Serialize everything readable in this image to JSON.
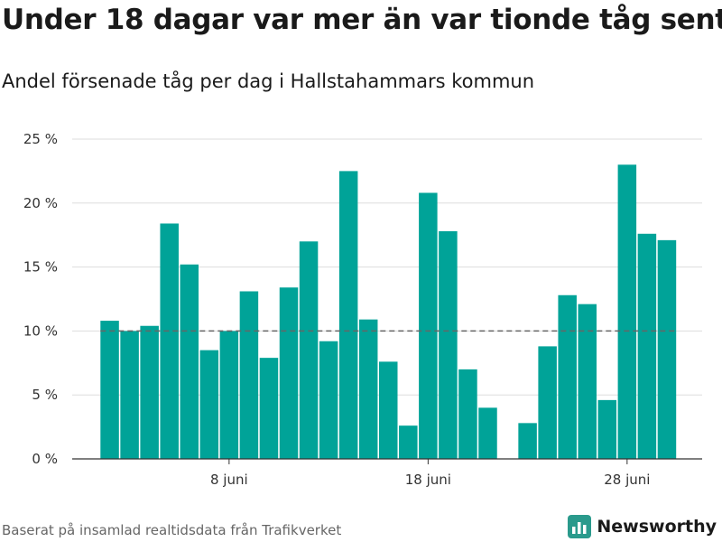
{
  "title": "Under 18 dagar var mer än var tionde tåg sent",
  "subtitle": "Andel försenade tåg per dag i Hallstahammars kommun",
  "source": "Baserat på insamlad realtidsdata från Trafikverket",
  "brand": {
    "name": "Newsworthy",
    "icon": "bar-chart-logo-icon"
  },
  "colors": {
    "bar": "#00a398",
    "reference_line": "#666666",
    "grid": "#dddddd",
    "brand": "#2a9a8c"
  },
  "chart_data": {
    "type": "bar",
    "x": [
      2,
      3,
      4,
      5,
      6,
      7,
      8,
      9,
      10,
      11,
      12,
      13,
      14,
      15,
      16,
      17,
      18,
      19,
      20,
      21,
      22,
      23,
      24,
      25,
      26,
      27,
      28,
      29,
      30
    ],
    "values": [
      10.8,
      10.0,
      10.4,
      18.4,
      15.2,
      8.5,
      10.0,
      13.1,
      7.9,
      13.4,
      17.0,
      9.2,
      22.5,
      10.9,
      7.6,
      2.6,
      20.8,
      17.8,
      7.0,
      4.0,
      null,
      2.8,
      8.8,
      12.8,
      12.1,
      4.6,
      23.0,
      17.6,
      17.1
    ],
    "reference_line": {
      "value": 10,
      "style": "dashed"
    },
    "ylim": [
      0,
      25
    ],
    "yticks": [
      0,
      5,
      10,
      15,
      20,
      25
    ],
    "ytick_labels": [
      "0 %",
      "5 %",
      "10 %",
      "15 %",
      "20 %",
      "25 %"
    ],
    "xticks": [
      8,
      18,
      28
    ],
    "xtick_labels": [
      "8 juni",
      "18 juni",
      "28 juni"
    ],
    "grid": true,
    "xlabel": "",
    "ylabel": ""
  }
}
